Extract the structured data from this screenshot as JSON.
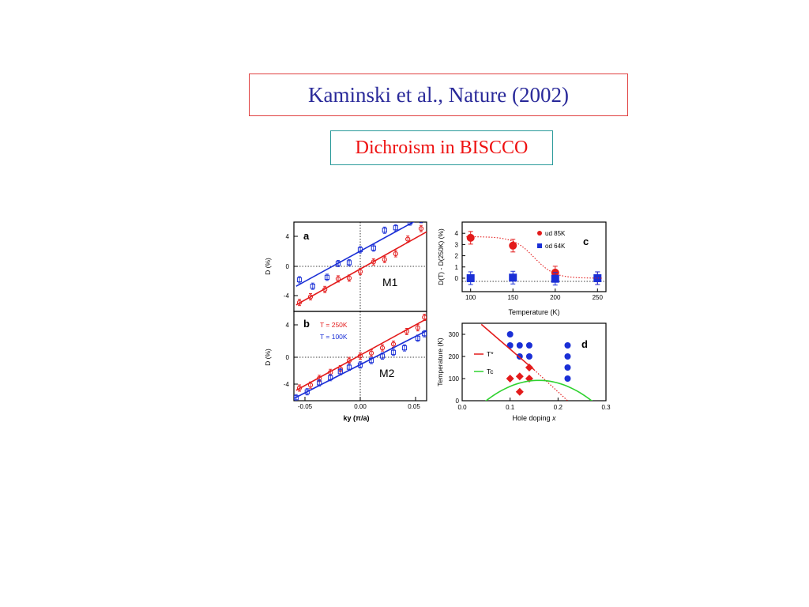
{
  "slide": {
    "reference": "Kaminski et al., Nature (2002)",
    "topic": "Dichroism in BISCCO"
  },
  "colors": {
    "red": "#e31b1b",
    "blue": "#1a2fd6",
    "green": "#2fd22f",
    "reference_text": "#2a2a9a",
    "topic_text": "#ee1111"
  },
  "chart_data": [
    {
      "panel": "a",
      "type": "scatter",
      "inset_label": "M1",
      "xlabel": "",
      "ylabel": "D (%)",
      "xlim": [
        -0.06,
        0.06
      ],
      "ylim": [
        -5,
        6
      ],
      "yticks": [
        "4",
        "0",
        "-4"
      ],
      "series": [
        {
          "color": "#e31b1b",
          "marker": "circle",
          "x": [
            -0.055,
            -0.045,
            -0.032,
            -0.02,
            -0.01,
            0.0,
            0.012,
            0.022,
            0.032,
            0.043,
            0.055
          ],
          "y": [
            -3.9,
            -3.2,
            -2.3,
            -1.0,
            -0.9,
            -0.1,
            1.1,
            1.4,
            2.1,
            3.9,
            5.2
          ],
          "fit": [
            [
              -0.058,
              -4.2
            ],
            [
              0.06,
              4.8
            ]
          ]
        },
        {
          "color": "#1a2fd6",
          "marker": "square",
          "x": [
            -0.055,
            -0.043,
            -0.03,
            -0.02,
            -0.01,
            0.0,
            0.012,
            0.022,
            0.032,
            0.045,
            0.055
          ],
          "y": [
            -1.1,
            -1.9,
            -0.8,
            0.9,
            1.0,
            2.6,
            2.8,
            5.0,
            5.3,
            6.0,
            6.3
          ],
          "fit": [
            [
              -0.058,
              -1.9
            ],
            [
              0.06,
              6.9
            ]
          ]
        }
      ]
    },
    {
      "panel": "b",
      "type": "scatter",
      "inset_label": "M2",
      "xlabel": "ky (π/a)",
      "ylabel": "D (%)",
      "xlim": [
        -0.06,
        0.06
      ],
      "ylim": [
        -6,
        6
      ],
      "xticks": [
        "-0.05",
        "0.00",
        "0.05"
      ],
      "yticks": [
        "4",
        "0",
        "-4"
      ],
      "legend": [
        "T = 250K",
        "T = 100K"
      ],
      "series": [
        {
          "name": "T = 250K",
          "color": "#e31b1b",
          "marker": "circle",
          "x": [
            -0.055,
            -0.045,
            -0.037,
            -0.027,
            -0.018,
            -0.01,
            0.0,
            0.01,
            0.02,
            0.03,
            0.042,
            0.052,
            0.058
          ],
          "y": [
            -4.3,
            -3.9,
            -3.0,
            -2.2,
            -1.7,
            -0.6,
            0.0,
            0.4,
            1.1,
            1.6,
            3.3,
            3.8,
            5.2
          ],
          "fit": [
            [
              -0.058,
              -4.6
            ],
            [
              0.06,
              5.0
            ]
          ]
        },
        {
          "name": "T = 100K",
          "color": "#1a2fd6",
          "marker": "square",
          "x": [
            -0.058,
            -0.048,
            -0.037,
            -0.027,
            -0.018,
            -0.01,
            0.0,
            0.01,
            0.02,
            0.03,
            0.04,
            0.052,
            0.058
          ],
          "y": [
            -5.6,
            -4.8,
            -3.6,
            -2.9,
            -2.1,
            -1.5,
            -1.2,
            -0.6,
            0.0,
            0.5,
            1.1,
            2.4,
            3.0
          ],
          "fit": [
            [
              -0.06,
              -5.7
            ],
            [
              0.06,
              3.4
            ]
          ]
        }
      ]
    },
    {
      "panel": "c",
      "type": "scatter",
      "xlabel": "Temperature (K)",
      "ylabel": "D(T) - D(250K) (%)",
      "xlim": [
        90,
        260
      ],
      "ylim": [
        -1.2,
        5
      ],
      "xticks": [
        100,
        150,
        200,
        250
      ],
      "yticks": [
        0,
        1,
        2,
        3,
        4
      ],
      "legend": [
        "ud 85K",
        "od 64K"
      ],
      "series": [
        {
          "name": "ud 85K",
          "color": "#e31b1b",
          "marker": "circle",
          "x": [
            100,
            150,
            200,
            250
          ],
          "y": [
            3.6,
            2.9,
            0.5,
            0.0
          ]
        },
        {
          "name": "od 64K",
          "color": "#1a2fd6",
          "marker": "square",
          "x": [
            100,
            150,
            200,
            250
          ],
          "y": [
            0.0,
            0.05,
            -0.05,
            0.0
          ]
        }
      ]
    },
    {
      "panel": "d",
      "type": "scatter",
      "xlabel": "Hole doping x",
      "ylabel": "Temperature (K)",
      "xlim": [
        0.0,
        0.3
      ],
      "ylim": [
        0,
        350
      ],
      "xticks": [
        "0.0",
        "0.1",
        "0.2",
        "0.3"
      ],
      "yticks": [
        0,
        100,
        200,
        300
      ],
      "legend": [
        "T*",
        "Tc"
      ],
      "series": [
        {
          "color": "#1a2fd6",
          "marker": "circle",
          "x": [
            0.1,
            0.1,
            0.12,
            0.12,
            0.14,
            0.14,
            0.22,
            0.22,
            0.22,
            0.22
          ],
          "y": [
            300,
            250,
            250,
            200,
            250,
            200,
            250,
            200,
            150,
            100
          ]
        },
        {
          "color": "#e31b1b",
          "marker": "diamond",
          "x": [
            0.1,
            0.12,
            0.14,
            0.14,
            0.12
          ],
          "y": [
            100,
            110,
            150,
            100,
            40
          ]
        }
      ]
    }
  ]
}
